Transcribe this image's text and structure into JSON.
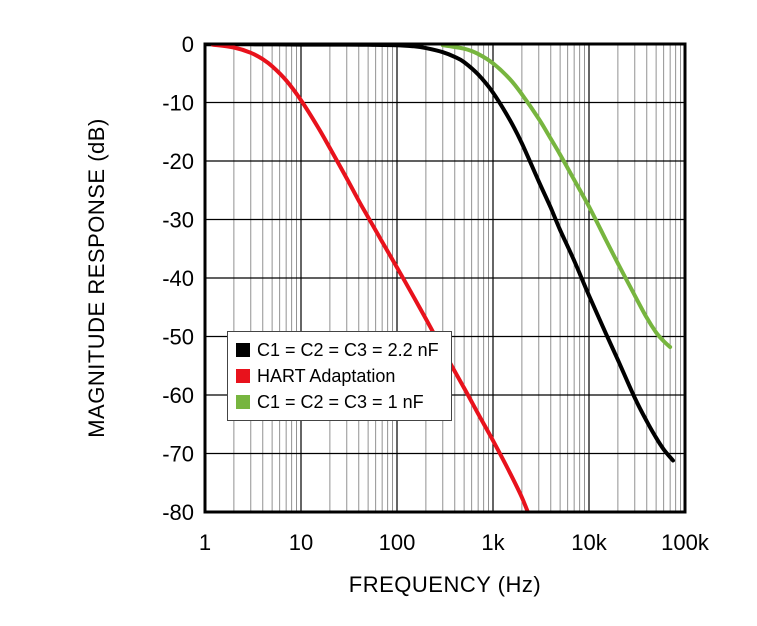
{
  "chart_data": {
    "type": "line",
    "title": "",
    "xlabel": "FREQUENCY (Hz)",
    "ylabel": "MAGNITUDE RESPONSE (dB)",
    "x_scale": "log",
    "xlim": [
      1,
      100000
    ],
    "ylim": [
      -80,
      0
    ],
    "x_tick_values": [
      1,
      10,
      100,
      1000,
      10000,
      100000
    ],
    "x_tick_labels": [
      "1",
      "10",
      "100",
      "1k",
      "10k",
      "100k"
    ],
    "y_tick_values": [
      0,
      -10,
      -20,
      -30,
      -40,
      -50,
      -60,
      -70,
      -80
    ],
    "y_tick_labels": [
      "0",
      "-10",
      "-20",
      "-30",
      "-40",
      "-50",
      "-60",
      "-70",
      "-80"
    ],
    "grid": "major and log-minor vertical lines, major horizontal lines",
    "legend_position": "inside lower-left",
    "series": [
      {
        "name": "C1 = C2 = C3 = 2.2 nF",
        "color": "#000000",
        "points": [
          [
            1,
            -0.05
          ],
          [
            3,
            -0.05
          ],
          [
            10,
            -0.1
          ],
          [
            30,
            -0.1
          ],
          [
            60,
            -0.15
          ],
          [
            100,
            -0.2
          ],
          [
            150,
            -0.4
          ],
          [
            200,
            -0.7
          ],
          [
            300,
            -1.4
          ],
          [
            400,
            -2.2
          ],
          [
            500,
            -3.1
          ],
          [
            700,
            -5.2
          ],
          [
            1000,
            -8.3
          ],
          [
            1500,
            -13
          ],
          [
            2000,
            -17
          ],
          [
            3000,
            -23.5
          ],
          [
            4000,
            -28
          ],
          [
            5000,
            -31.8
          ],
          [
            7000,
            -37
          ],
          [
            10000,
            -43
          ],
          [
            15000,
            -49.5
          ],
          [
            20000,
            -54
          ],
          [
            30000,
            -60.5
          ],
          [
            40000,
            -64.5
          ],
          [
            50000,
            -67.3
          ],
          [
            60000,
            -69.3
          ],
          [
            75000,
            -71.2
          ]
        ]
      },
      {
        "name": "HART Adaptation",
        "color": "#e8121c",
        "points": [
          [
            1.2,
            -0.1
          ],
          [
            2,
            -0.6
          ],
          [
            3,
            -1.5
          ],
          [
            4,
            -2.6
          ],
          [
            5,
            -3.8
          ],
          [
            7,
            -6.2
          ],
          [
            10,
            -9.6
          ],
          [
            15,
            -14.2
          ],
          [
            20,
            -17.8
          ],
          [
            30,
            -23
          ],
          [
            40,
            -26.8
          ],
          [
            50,
            -29.6
          ],
          [
            70,
            -33.8
          ],
          [
            100,
            -38.2
          ],
          [
            150,
            -43.3
          ],
          [
            200,
            -47
          ],
          [
            300,
            -52.3
          ],
          [
            500,
            -58.8
          ],
          [
            700,
            -63.2
          ],
          [
            1000,
            -67.8
          ],
          [
            1500,
            -73.3
          ],
          [
            2000,
            -77.5
          ],
          [
            2500,
            -81.5
          ]
        ]
      },
      {
        "name": "C1 = C2 = C3 = 1 nF",
        "color": "#77b53f",
        "points": [
          [
            300,
            -0.2
          ],
          [
            500,
            -0.8
          ],
          [
            700,
            -1.7
          ],
          [
            1000,
            -3.3
          ],
          [
            1500,
            -6
          ],
          [
            2000,
            -8.6
          ],
          [
            3000,
            -12.8
          ],
          [
            4000,
            -16.2
          ],
          [
            5000,
            -18.9
          ],
          [
            7000,
            -23.2
          ],
          [
            10000,
            -27.8
          ],
          [
            15000,
            -33.5
          ],
          [
            20000,
            -37.5
          ],
          [
            30000,
            -43
          ],
          [
            40000,
            -46.8
          ],
          [
            50000,
            -49.3
          ],
          [
            60000,
            -50.8
          ],
          [
            70000,
            -51.8
          ]
        ]
      }
    ]
  }
}
